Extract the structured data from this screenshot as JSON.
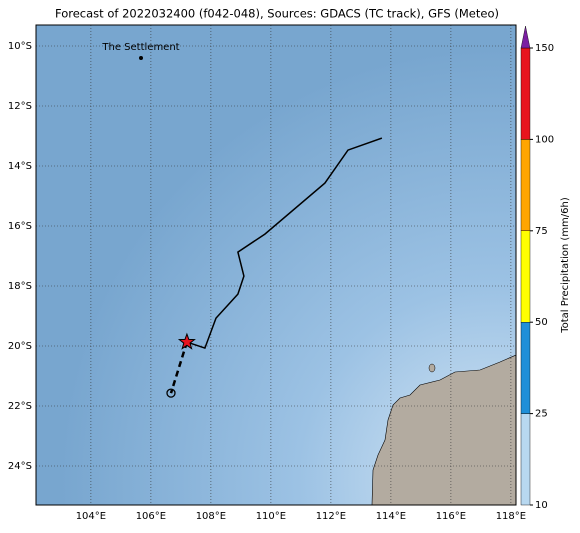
{
  "chart_data": {
    "type": "map",
    "title": "Forecast of 2022032400 (f042-048), Sources: GDACS (TC track), GFS (Meteo)",
    "xlim": [
      102.17,
      118.17
    ],
    "ylim": [
      -25.3,
      -9.3
    ],
    "xticks": [
      {
        "value": 104,
        "label": "104°E"
      },
      {
        "value": 106,
        "label": "106°E"
      },
      {
        "value": 108,
        "label": "108°E"
      },
      {
        "value": 110,
        "label": "110°E"
      },
      {
        "value": 112,
        "label": "112°E"
      },
      {
        "value": 114,
        "label": "114°E"
      },
      {
        "value": 116,
        "label": "116°E"
      },
      {
        "value": 118,
        "label": "118°E"
      }
    ],
    "yticks": [
      {
        "value": -10,
        "label": "10°S"
      },
      {
        "value": -12,
        "label": "12°S"
      },
      {
        "value": -14,
        "label": "14°S"
      },
      {
        "value": -16,
        "label": "16°S"
      },
      {
        "value": -18,
        "label": "18°S"
      },
      {
        "value": -20,
        "label": "20°S"
      },
      {
        "value": -22,
        "label": "22°S"
      },
      {
        "value": -24,
        "label": "24°S"
      }
    ],
    "grid": true,
    "places": [
      {
        "name": "The Settlement",
        "lon": 105.67,
        "lat": -10.4
      }
    ],
    "track": {
      "lon": [
        113.7,
        112.57,
        111.8,
        109.8,
        108.9,
        109.1,
        108.9,
        108.17,
        107.8,
        107.2
      ],
      "lat": [
        -13.07,
        -13.47,
        -14.57,
        -16.27,
        -16.87,
        -17.67,
        -18.27,
        -19.07,
        -20.07,
        -19.87
      ],
      "color": "#000000"
    },
    "forecast": {
      "lon": [
        107.2,
        106.67
      ],
      "lat": [
        -19.87,
        -21.57
      ]
    },
    "colorbar": {
      "label": "Total Precipitation (mm/6h)",
      "bounds": [
        10,
        25,
        50,
        75,
        100,
        150
      ],
      "colors": [
        "#b8d8f0",
        "#1f8fd8",
        "#ffff00",
        "#ffa500",
        "#e8141e"
      ],
      "extend_color": "#7b1fa2"
    }
  }
}
